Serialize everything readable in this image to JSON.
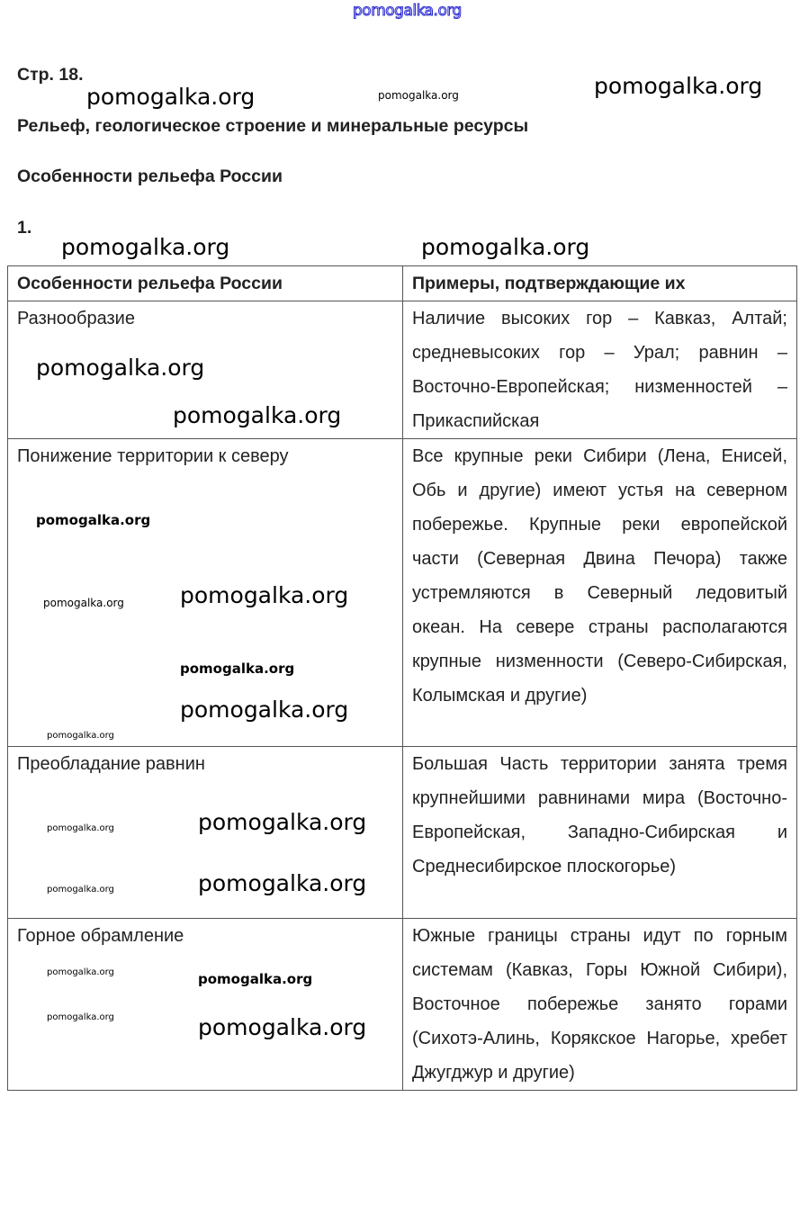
{
  "site_header": "pomogalka.org",
  "page_label": "Стр. 18.",
  "section_title": "Рельеф, геологическое строение и минеральные ресурсы",
  "subsection_title": "Особенности рельефа России",
  "task_number": "1.",
  "table": {
    "headers": [
      "Особенности рельефа России",
      "Примеры, подтверждающие их"
    ],
    "rows": [
      {
        "feature": "Разнообразие",
        "examples": "Наличие высоких гор – Кавказ, Алтай; средневысоких гор – Урал; равнин – Восточно-Европейская; низменностей – Прикаспийская"
      },
      {
        "feature": "Понижение территории к северу",
        "examples": "Все крупные реки Сибири (Лена, Енисей, Обь и другие) имеют устья на северном побережье. Крупные реки европейской части (Северная Двина Печора) также устремляются в Северный ледовитый океан. На севере страны располагаются крупные низменности (Северо-Сибирская, Колымская и другие)"
      },
      {
        "feature": "Преобладание равнин",
        "examples": "Большая Часть территории занята тремя крупнейшими равнинами мира (Восточно-Европейская, Западно-Сибирская и Среднесибирское плоскогорье)"
      },
      {
        "feature": "Горное обрамление",
        "examples": "Южные границы страны идут по горным системам (Кавказ, Горы Южной Сибири), Восточное побережье занято горами (Сихотэ-Алинь, Корякское Нагорье, хребет Джугджур и другие)"
      }
    ]
  },
  "watermark": "pomogalka.org"
}
